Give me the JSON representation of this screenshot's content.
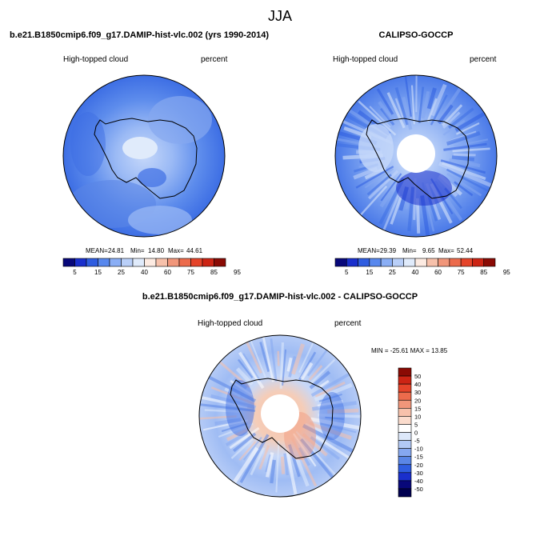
{
  "page_title": "JJA",
  "panel_left": {
    "title": "b.e21.B1850cmip6.f09_g17.DAMIP-hist-vlc.002 (yrs 1990-2014)",
    "variable": "High-topped cloud",
    "units": "percent",
    "stats": {
      "mean_label": "MEAN=",
      "mean": "24.81",
      "min_label": "Min=",
      "min": "14.80",
      "max_label": "Max=",
      "max": "44.61"
    }
  },
  "panel_right": {
    "title": "CALIPSO-GOCCP",
    "variable": "High-topped cloud",
    "units": "percent",
    "stats": {
      "mean_label": "MEAN=",
      "mean": "29.39",
      "min_label": "Min=",
      "min": "9.65",
      "max_label": "Max=",
      "max": "52.44"
    }
  },
  "panel_diff": {
    "title": "b.e21.B1850cmip6.f09_g17.DAMIP-hist-vlc.002 - CALIPSO-GOCCP",
    "variable": "High-topped cloud",
    "units": "percent",
    "minmax_text": "MIN = -25.61 MAX =  13.85"
  },
  "horizontal_colorbar": {
    "labels": [
      "5",
      "15",
      "25",
      "40",
      "60",
      "75",
      "85",
      "95"
    ],
    "colors": [
      "#08087a",
      "#1a2fcc",
      "#2f5de0",
      "#5888ee",
      "#8aaef5",
      "#b9cff8",
      "#e0ebfb",
      "#fdebe2",
      "#f7c1ab",
      "#f1967a",
      "#ec6b4c",
      "#e5442a",
      "#cc2414",
      "#8a0a04"
    ]
  },
  "vertical_colorbar": {
    "labels": [
      "50",
      "40",
      "30",
      "20",
      "15",
      "10",
      "5",
      "0",
      "-5",
      "-10",
      "-15",
      "-20",
      "-30",
      "-40",
      "-50"
    ],
    "colors": [
      "#8a0a04",
      "#cc2414",
      "#e5442a",
      "#ec6b4c",
      "#f1967a",
      "#f7c1ab",
      "#fbdccd",
      "#ffffff",
      "#dde8fa",
      "#b2c9f5",
      "#86a8f0",
      "#5a86e6",
      "#2f5de0",
      "#1a2fcc",
      "#08087a",
      "#000050"
    ]
  }
}
